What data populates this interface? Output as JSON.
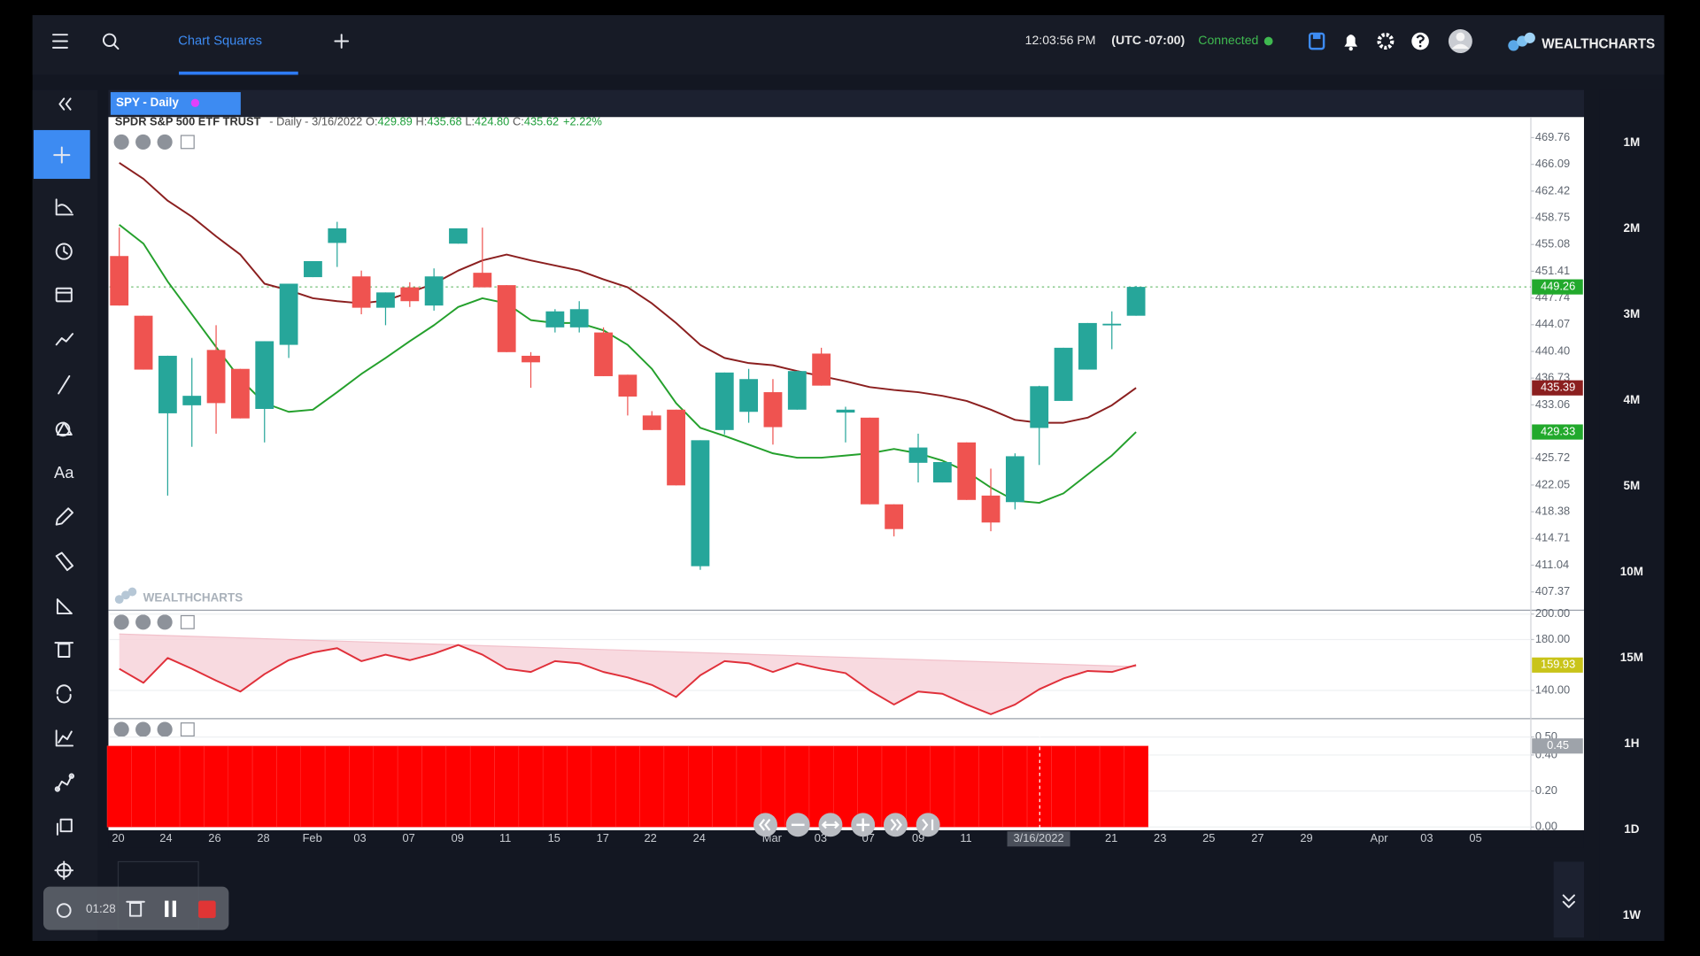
{
  "topbar": {
    "tab": "Chart Squares",
    "time": "12:03:56 PM",
    "timezone": "(UTC -07:00)",
    "status": "Connected",
    "brand": "WEALTHCHARTS"
  },
  "chart_tab": "SPY - Daily",
  "info": {
    "name": "SPDR S&P 500 ETF TRUST",
    "interval": "- Daily -",
    "date": "3/16/2022",
    "open_label": "O:",
    "open": "429.89",
    "high_label": "H:",
    "high": "435.68",
    "low_label": "L:",
    "low": "424.80",
    "close_label": "C:",
    "close": "435.62",
    "change": "+2.22%"
  },
  "toolbar": {
    "text_tool": "Aa"
  },
  "timeframes": [
    "1M",
    "2M",
    "3M",
    "4M",
    "5M",
    "10M",
    "15M",
    "1H",
    "1D",
    "1W"
  ],
  "recorder": {
    "elapsed": "01:28"
  },
  "watermark": "WEALTHCHARTS",
  "x_axis": {
    "labels": [
      "20",
      "24",
      "26",
      "28",
      "Feb",
      "03",
      "07",
      "09",
      "11",
      "15",
      "17",
      "22",
      "24",
      "Mar",
      "03",
      "07",
      "09",
      "11",
      "3/16/2022",
      "21",
      "23",
      "25",
      "27",
      "29",
      "Apr",
      "03",
      "05"
    ]
  },
  "chart_data": [
    {
      "type": "candlestick",
      "up_color": "#26a69a",
      "down_color": "#ef5350",
      "open": [
        453.5,
        445.3,
        431.9,
        433.0,
        440.6,
        438.0,
        432.5,
        441.3,
        450.6,
        455.3,
        450.7,
        446.4,
        449.2,
        446.7,
        455.2,
        451.2,
        449.5,
        439.8,
        443.7,
        443.7,
        443.0,
        437.2,
        431.6,
        432.4,
        410.9,
        429.6,
        432.1,
        434.8,
        432.4,
        440.1,
        432.0,
        431.3,
        419.4,
        425.1,
        422.4,
        427.9,
        420.6,
        419.7,
        429.89,
        433.6,
        437.9,
        444.1,
        445.3
      ],
      "high": [
        457.4,
        445.3,
        439.8,
        439.5,
        444.0,
        438.0,
        441.8,
        449.7,
        452.8,
        458.2,
        451.5,
        448.5,
        449.9,
        451.8,
        457.3,
        457.4,
        449.5,
        440.3,
        446.2,
        447.3,
        443.7,
        437.2,
        432.2,
        432.4,
        428.2,
        437.5,
        438.0,
        436.6,
        437.7,
        440.9,
        432.8,
        431.3,
        419.4,
        429.1,
        425.2,
        427.9,
        424.3,
        426.4,
        435.68,
        440.9,
        444.3,
        445.9,
        449.4
      ],
      "low": [
        446.7,
        437.9,
        420.6,
        427.3,
        429.1,
        431.2,
        427.9,
        439.5,
        450.6,
        452.0,
        445.5,
        444.0,
        446.5,
        446.0,
        455.2,
        449.2,
        440.3,
        435.4,
        443.0,
        443.0,
        437.0,
        431.6,
        429.6,
        422.0,
        410.4,
        429.0,
        430.6,
        427.6,
        432.4,
        435.7,
        427.9,
        419.4,
        415.0,
        422.4,
        422.4,
        420.0,
        415.7,
        418.7,
        424.8,
        433.6,
        437.9,
        440.7,
        445.3
      ],
      "close": [
        446.7,
        437.9,
        439.8,
        434.3,
        433.3,
        431.2,
        441.8,
        449.7,
        452.8,
        457.3,
        446.4,
        448.5,
        447.3,
        450.7,
        457.3,
        449.2,
        440.3,
        438.9,
        445.9,
        446.2,
        437.0,
        434.2,
        429.6,
        422.0,
        428.2,
        437.5,
        436.6,
        430.0,
        437.7,
        435.7,
        432.4,
        419.4,
        416.0,
        427.2,
        425.2,
        420.0,
        416.9,
        426.0,
        435.62,
        440.9,
        444.3,
        444.2,
        449.26
      ],
      "series": [
        {
          "color": "#8b1f1f",
          "values": [
            466.3,
            464.1,
            461.1,
            458.9,
            456.2,
            453.7,
            449.7,
            448.8,
            447.7,
            447.3,
            447.0,
            447.4,
            448.5,
            449.7,
            451.5,
            452.9,
            453.7,
            452.9,
            452.2,
            451.5,
            450.3,
            449.2,
            447.0,
            444.3,
            441.3,
            439.5,
            438.8,
            438.5,
            437.7,
            437.0,
            436.3,
            435.5,
            435.1,
            434.8,
            434.3,
            433.6,
            432.4,
            431.0,
            430.6,
            430.6,
            431.3,
            433.0,
            435.39
          ]
        },
        {
          "color": "#24a02c",
          "values": [
            457.8,
            455.2,
            450.0,
            445.5,
            441.0,
            436.6,
            433.3,
            432.1,
            432.4,
            434.8,
            437.3,
            439.5,
            441.8,
            444.0,
            446.5,
            447.7,
            447.0,
            444.7,
            444.3,
            444.3,
            443.3,
            441.3,
            438.0,
            433.3,
            429.9,
            428.8,
            427.6,
            426.4,
            425.8,
            425.8,
            426.1,
            426.4,
            427.0,
            426.4,
            425.4,
            423.9,
            421.7,
            419.9,
            419.6,
            420.9,
            423.5,
            426.1,
            429.33
          ]
        }
      ],
      "ylim": [
        405.0,
        470.8
      ],
      "yticks": [
        469.76,
        466.09,
        462.42,
        458.75,
        455.08,
        451.41,
        447.74,
        444.07,
        {
          "value": 440.4,
          "label": "440.40"
        },
        436.73,
        433.06,
        425.72,
        422.05,
        418.38,
        414.71,
        411.04,
        407.37
      ],
      "grid": false
    },
    {
      "type": "line",
      "color": "#e0303a",
      "band_color": "#f7d3da",
      "values": [
        157.0,
        146.0,
        165.5,
        157.0,
        147.7,
        139.1,
        152.8,
        163.8,
        169.8,
        173.2,
        163.0,
        168.1,
        163.8,
        168.9,
        175.7,
        168.1,
        157.0,
        154.5,
        163.0,
        161.3,
        154.5,
        150.2,
        144.3,
        134.9,
        151.9,
        163.0,
        161.3,
        154.5,
        161.3,
        157.0,
        153.6,
        140.0,
        128.9,
        139.1,
        137.4,
        128.9,
        121.3,
        128.9,
        140.9,
        149.4,
        155.3,
        154.5,
        159.93
      ],
      "band": [
        184.3,
        158.7
      ],
      "ylim": [
        118.7,
        201.3
      ],
      "yticks": [
        {
          "value": 200,
          "label": "200.00"
        },
        {
          "value": 180,
          "label": "180.00"
        },
        {
          "value": 140,
          "label": "140.00"
        }
      ],
      "grid": true
    },
    {
      "type": "bar",
      "color": "#ff0000",
      "values": [
        0.45,
        0.45,
        0.45,
        0.45,
        0.45,
        0.45,
        0.45,
        0.45,
        0.45,
        0.45,
        0.45,
        0.45,
        0.45,
        0.45,
        0.45,
        0.45,
        0.45,
        0.45,
        0.45,
        0.45,
        0.45,
        0.45,
        0.45,
        0.45,
        0.45,
        0.45,
        0.45,
        0.45,
        0.45,
        0.45,
        0.45,
        0.45,
        0.45,
        0.45,
        0.45,
        0.45,
        0.45,
        0.45,
        0.45,
        0.45,
        0.45,
        0.45,
        0.45
      ],
      "ylim": [
        0,
        0.59
      ],
      "yticks": [
        {
          "value": 0.5,
          "label": "0.50"
        },
        {
          "value": 0.4,
          "label": "0.40"
        },
        {
          "value": 0.2,
          "label": "0.20"
        },
        {
          "value": 0,
          "label": "0.00"
        }
      ],
      "grid": true
    }
  ]
}
